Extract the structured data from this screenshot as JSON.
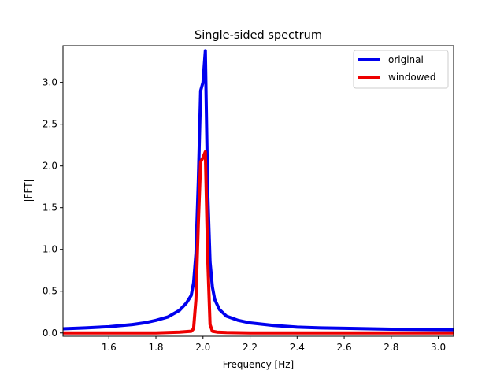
{
  "chart_data": {
    "type": "line",
    "title": "Single-sided spectrum",
    "xlabel": "Frequency [Hz]",
    "ylabel": "|FFT|",
    "xlim": [
      1.405,
      3.065
    ],
    "ylim": [
      -0.04,
      3.44
    ],
    "xticks": [
      1.6,
      1.8,
      2.0,
      2.2,
      2.4,
      2.6,
      2.8,
      3.0
    ],
    "xtick_labels": [
      "1.6",
      "1.8",
      "2.0",
      "2.2",
      "2.4",
      "2.6",
      "2.8",
      "3.0"
    ],
    "yticks": [
      0.0,
      0.5,
      1.0,
      1.5,
      2.0,
      2.5,
      3.0
    ],
    "ytick_labels": [
      "0.0",
      "0.5",
      "1.0",
      "1.5",
      "2.0",
      "2.5",
      "3.0"
    ],
    "grid": false,
    "legend_position": "top-right",
    "series": [
      {
        "name": "original",
        "color": "#0000ee",
        "x": [
          1.405,
          1.5,
          1.6,
          1.7,
          1.75,
          1.8,
          1.85,
          1.9,
          1.93,
          1.95,
          1.96,
          1.97,
          1.98,
          1.99,
          2.0,
          2.01,
          2.02,
          2.03,
          2.04,
          2.05,
          2.07,
          2.1,
          2.15,
          2.2,
          2.3,
          2.4,
          2.5,
          2.6,
          2.8,
          3.0,
          3.065
        ],
        "y": [
          0.05,
          0.06,
          0.075,
          0.1,
          0.12,
          0.15,
          0.19,
          0.27,
          0.36,
          0.45,
          0.6,
          0.95,
          1.8,
          2.9,
          3.0,
          3.38,
          1.7,
          0.85,
          0.55,
          0.4,
          0.28,
          0.2,
          0.15,
          0.12,
          0.09,
          0.07,
          0.06,
          0.055,
          0.045,
          0.04,
          0.038
        ]
      },
      {
        "name": "windowed",
        "color": "#ee0000",
        "x": [
          1.405,
          1.6,
          1.8,
          1.9,
          1.95,
          1.96,
          1.97,
          1.98,
          1.99,
          2.0,
          2.01,
          2.02,
          2.03,
          2.04,
          2.06,
          2.1,
          2.2,
          2.4,
          2.6,
          2.8,
          3.065
        ],
        "y": [
          0.0,
          0.0,
          0.0,
          0.01,
          0.02,
          0.05,
          0.4,
          1.3,
          2.05,
          2.1,
          2.17,
          0.9,
          0.1,
          0.02,
          0.01,
          0.005,
          0.0,
          0.0,
          0.0,
          0.0,
          0.0
        ]
      }
    ]
  }
}
